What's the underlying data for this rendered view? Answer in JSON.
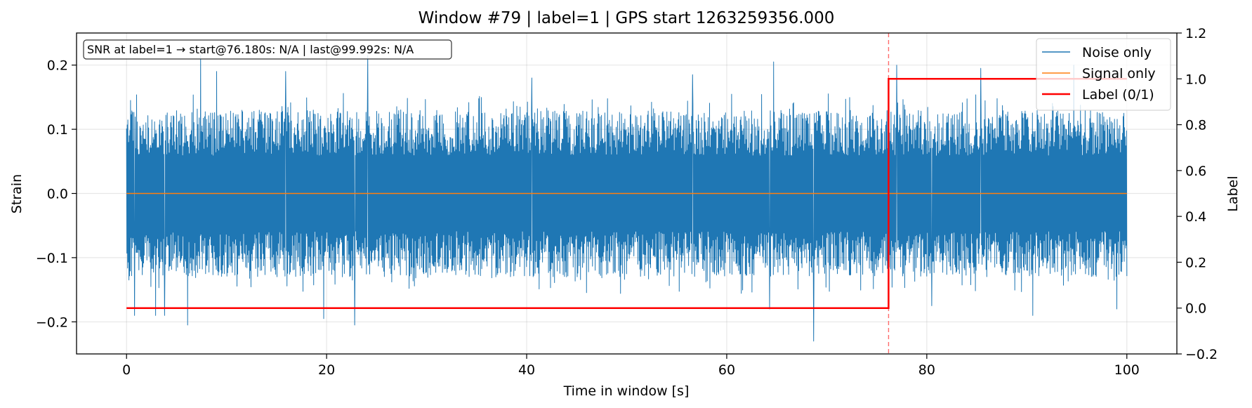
{
  "chart_data": {
    "type": "line",
    "title": "Window #79  |  label=1  |  GPS start 1263259356.000",
    "xlabel": "Time in window [s]",
    "ylabel": "Strain",
    "y2label": "Label",
    "xlim": [
      -5,
      105
    ],
    "ylim": [
      -0.25,
      0.25
    ],
    "y2lim": [
      -0.2,
      1.2
    ],
    "x_ticks": [
      0,
      20,
      40,
      60,
      80,
      100
    ],
    "x_tick_labels": [
      "0",
      "20",
      "40",
      "60",
      "80",
      "100"
    ],
    "y_ticks": [
      -0.2,
      -0.1,
      0.0,
      0.1,
      0.2
    ],
    "y_tick_labels": [
      "−0.2",
      "−0.1",
      "0.0",
      "0.1",
      "0.2"
    ],
    "y2_ticks": [
      -0.2,
      0.0,
      0.2,
      0.4,
      0.6,
      0.8,
      1.0,
      1.2
    ],
    "y2_tick_labels": [
      "−0.2",
      "0.0",
      "0.2",
      "0.4",
      "0.6",
      "0.8",
      "1.0",
      "1.2"
    ],
    "grid": true,
    "legend_position": "top-right",
    "annotation": "SNR at label=1 → start@76.180s: N/A | last@99.992s: N/A",
    "vline": {
      "x": 76.18,
      "color": "#ff6b6b",
      "style": "dashed"
    },
    "series": [
      {
        "name": "Noise only",
        "axis": "left",
        "color": "#1f77b4",
        "kind": "noise",
        "x_range": [
          0,
          100
        ],
        "typical_envelope": [
          -0.13,
          0.13
        ],
        "extremes": [
          {
            "x": 0.8,
            "y": -0.19
          },
          {
            "x": 2.9,
            "y": -0.19
          },
          {
            "x": 3.8,
            "y": -0.19
          },
          {
            "x": 6.1,
            "y": -0.205
          },
          {
            "x": 7.4,
            "y": 0.215
          },
          {
            "x": 9.0,
            "y": 0.19
          },
          {
            "x": 15.9,
            "y": 0.19
          },
          {
            "x": 19.7,
            "y": -0.195
          },
          {
            "x": 22.8,
            "y": -0.205
          },
          {
            "x": 24.1,
            "y": 0.215
          },
          {
            "x": 40.5,
            "y": 0.18
          },
          {
            "x": 56.6,
            "y": 0.185
          },
          {
            "x": 64.3,
            "y": -0.18
          },
          {
            "x": 64.7,
            "y": 0.205
          },
          {
            "x": 68.7,
            "y": -0.23
          },
          {
            "x": 77.0,
            "y": 0.2
          },
          {
            "x": 80.5,
            "y": -0.175
          },
          {
            "x": 85.4,
            "y": 0.195
          },
          {
            "x": 90.6,
            "y": -0.19
          },
          {
            "x": 94.7,
            "y": 0.2
          },
          {
            "x": 99.0,
            "y": -0.18
          }
        ]
      },
      {
        "name": "Signal only",
        "axis": "left",
        "color": "#ff7f0e",
        "x": [
          0,
          100
        ],
        "y": [
          0,
          0
        ]
      },
      {
        "name": "Label (0/1)",
        "axis": "right",
        "color": "#ff0000",
        "x": [
          0,
          76.18,
          76.18,
          100
        ],
        "y": [
          0,
          0,
          1,
          1
        ]
      }
    ]
  }
}
